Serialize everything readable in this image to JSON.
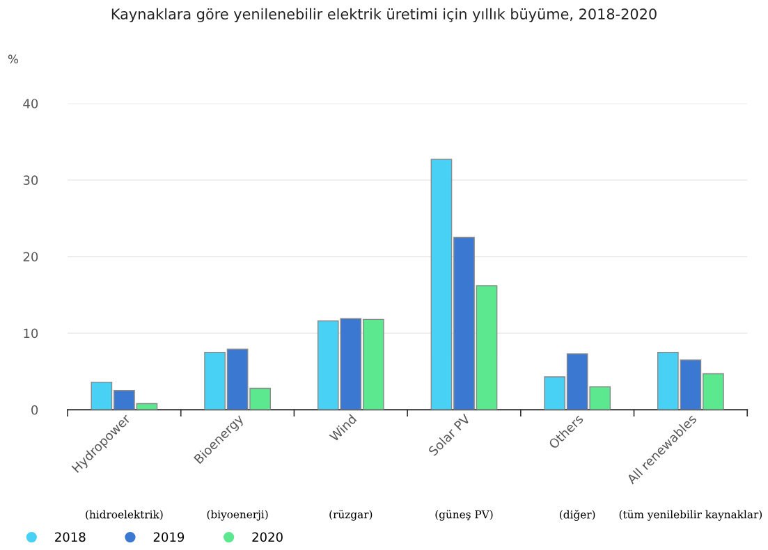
{
  "chart_data": {
    "type": "bar",
    "title": "Kaynaklara göre yenilenebilir elektrik üretimi için yıllık büyüme, 2018-2020",
    "ylabel": "%",
    "categories": [
      "Hydropower",
      "Bioenergy",
      "Wind",
      "Solar PV",
      "Others",
      "All renewables"
    ],
    "series": [
      {
        "name": "2018",
        "color": "#48d1f5",
        "values": [
          3.6,
          7.5,
          11.6,
          32.7,
          4.3,
          7.5
        ]
      },
      {
        "name": "2019",
        "color": "#3b78d1",
        "values": [
          2.5,
          7.9,
          11.9,
          22.5,
          7.3,
          6.5
        ]
      },
      {
        "name": "2020",
        "color": "#5ce88f",
        "values": [
          0.8,
          2.8,
          11.8,
          16.2,
          3.0,
          4.7
        ]
      }
    ],
    "annotations": [
      "(hidroelektrik)",
      "(biyoenerji)",
      "(rüzgar)",
      "(güneş PV)",
      "(diğer)",
      "(tüm yenilebilir kaynaklar)"
    ],
    "ylim": [
      0,
      40
    ],
    "yticks": [
      0,
      10,
      20,
      30,
      40
    ],
    "grid": "y",
    "legend": "bottom left"
  }
}
